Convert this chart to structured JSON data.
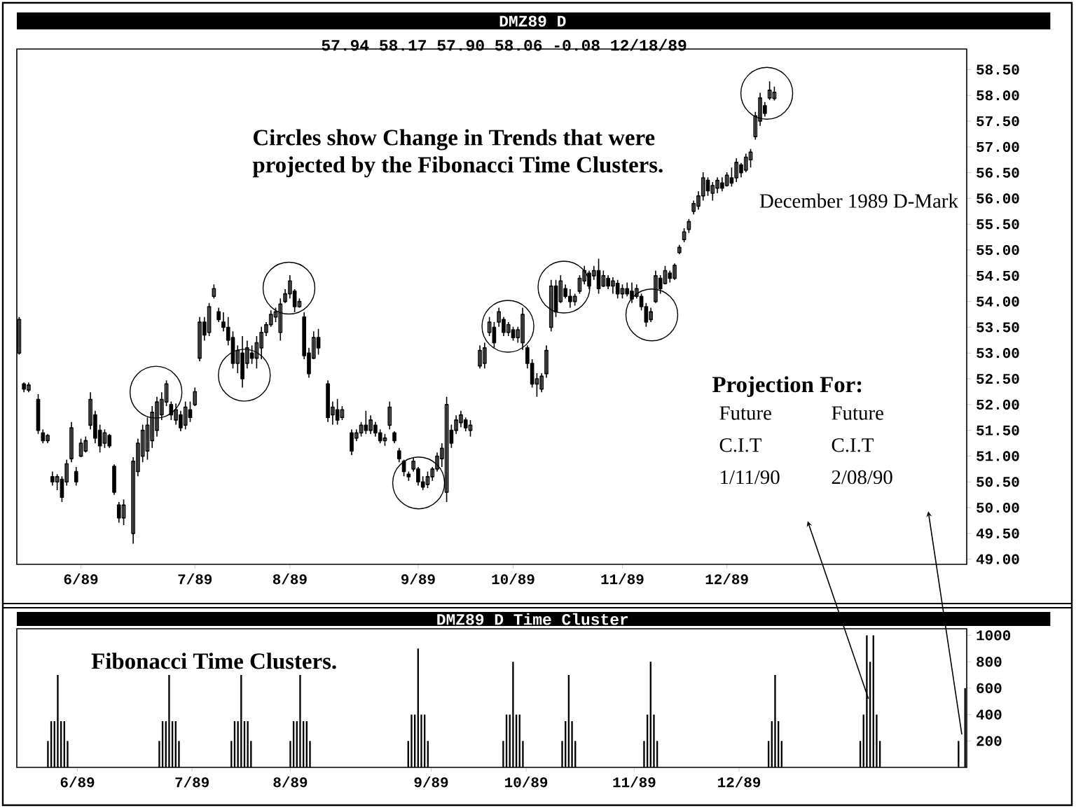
{
  "chart_data": [
    {
      "type": "candlestick",
      "title": "DMZ89 D",
      "subtitle": "57.94 58.17 57.90 58.06 -0.08 12/18/89",
      "color": "#000000",
      "categories": [
        null,
        null,
        null,
        null,
        null,
        null,
        null,
        null,
        null,
        null,
        null,
        null,
        null,
        "6/89",
        null,
        null,
        null,
        null,
        null,
        null,
        null,
        null,
        null,
        null,
        null,
        null,
        null,
        null,
        null,
        null,
        null,
        null,
        null,
        null,
        null,
        null,
        null,
        "7/89",
        null,
        null,
        null,
        null,
        null,
        null,
        null,
        null,
        null,
        null,
        null,
        null,
        null,
        null,
        null,
        null,
        null,
        null,
        null,
        "8/89",
        null,
        null,
        null,
        null,
        null,
        null,
        null,
        null,
        null,
        null,
        null,
        null,
        null,
        null,
        null,
        null,
        null,
        null,
        null,
        null,
        null,
        null,
        null,
        null,
        null,
        null,
        "9/89",
        null,
        null,
        null,
        null,
        null,
        null,
        null,
        null,
        null,
        null,
        null,
        null,
        null,
        null,
        null,
        null,
        null,
        null,
        null,
        "10/89",
        null,
        null,
        null,
        null,
        null,
        null,
        null,
        null,
        null,
        null,
        null,
        null,
        null,
        null,
        null,
        null,
        null,
        null,
        null,
        null,
        null,
        null,
        "11/89",
        null,
        null,
        null,
        null,
        null,
        null,
        null,
        null,
        null,
        null,
        null,
        null,
        null,
        null,
        null,
        null,
        null,
        null,
        null,
        null,
        null,
        "12/89",
        null,
        null,
        null,
        null,
        null,
        null,
        null,
        null,
        null,
        null,
        null,
        null,
        null,
        null,
        null,
        null,
        null,
        null,
        null,
        null,
        null,
        null,
        null,
        null,
        null,
        null,
        null,
        null,
        null,
        null,
        null,
        null,
        null,
        null,
        null,
        null,
        null,
        null,
        null,
        null,
        null,
        null,
        null,
        null,
        null,
        null,
        null,
        null,
        null,
        null
      ],
      "ohlc": [
        [
          53.0,
          53.7,
          52.97,
          53.65
        ],
        [
          52.4,
          52.43,
          52.24,
          52.3
        ],
        [
          52.28,
          52.43,
          52.24,
          52.38
        ],
        null,
        [
          52.1,
          52.2,
          51.43,
          51.5
        ],
        [
          51.45,
          51.52,
          51.25,
          51.3
        ],
        [
          51.3,
          51.43,
          51.25,
          51.4
        ],
        [
          50.6,
          50.7,
          50.43,
          50.5
        ],
        [
          50.5,
          50.65,
          50.34,
          50.6
        ],
        [
          50.55,
          50.61,
          50.11,
          50.2
        ],
        [
          50.5,
          50.93,
          50.43,
          50.85
        ],
        [
          50.95,
          51.66,
          50.88,
          51.55
        ],
        [
          50.7,
          50.79,
          50.43,
          50.5
        ],
        [
          51.0,
          51.34,
          50.98,
          51.25
        ],
        [
          51.1,
          51.38,
          51.07,
          51.3
        ],
        [
          51.6,
          52.24,
          51.52,
          52.1
        ],
        [
          51.8,
          51.88,
          51.25,
          51.35
        ],
        [
          51.5,
          51.61,
          51.07,
          51.2
        ],
        [
          51.25,
          51.52,
          51.16,
          51.45
        ],
        [
          51.4,
          51.43,
          51.16,
          51.2
        ],
        [
          50.8,
          50.84,
          50.25,
          50.3
        ],
        [
          50.05,
          50.11,
          49.71,
          49.8
        ],
        [
          49.8,
          50.16,
          49.66,
          50.05
        ],
        null,
        [
          49.5,
          50.98,
          49.3,
          50.9
        ],
        [
          50.7,
          51.34,
          50.61,
          51.25
        ],
        [
          51.0,
          51.61,
          50.88,
          51.5
        ],
        [
          51.1,
          51.75,
          50.93,
          51.6
        ],
        [
          51.3,
          51.97,
          51.16,
          51.85
        ],
        [
          51.5,
          52.15,
          51.38,
          52.05
        ],
        [
          51.8,
          52.24,
          51.7,
          52.1
        ],
        [
          52.05,
          52.47,
          51.97,
          52.4
        ],
        [
          52.0,
          52.06,
          51.7,
          51.8
        ],
        [
          51.7,
          52.02,
          51.61,
          51.9
        ],
        [
          51.8,
          51.88,
          51.48,
          51.55
        ],
        [
          51.6,
          52.06,
          51.52,
          51.95
        ],
        [
          51.9,
          52.06,
          51.66,
          51.75
        ],
        [
          52.0,
          52.33,
          51.97,
          52.25
        ],
        [
          52.9,
          53.7,
          52.84,
          53.6
        ],
        [
          53.6,
          53.7,
          53.24,
          53.35
        ],
        [
          53.4,
          53.97,
          53.33,
          53.9
        ],
        [
          54.1,
          54.33,
          54.06,
          54.25
        ],
        [
          53.8,
          53.88,
          53.6,
          53.65
        ],
        [
          53.6,
          53.79,
          53.42,
          53.5
        ],
        [
          53.5,
          53.7,
          53.15,
          53.25
        ],
        [
          53.3,
          53.42,
          52.7,
          52.8
        ],
        [
          52.8,
          53.15,
          52.61,
          53.05
        ],
        [
          53.0,
          53.33,
          52.33,
          52.5
        ],
        [
          52.8,
          53.24,
          52.7,
          53.1
        ],
        [
          53.0,
          53.15,
          52.79,
          52.9
        ],
        [
          52.9,
          53.33,
          52.7,
          53.2
        ],
        [
          53.1,
          53.51,
          52.88,
          53.4
        ],
        [
          53.4,
          53.6,
          53.33,
          53.55
        ],
        [
          53.55,
          53.83,
          53.51,
          53.75
        ],
        [
          53.7,
          53.88,
          53.6,
          53.8
        ],
        [
          53.4,
          54.06,
          53.24,
          53.95
        ],
        [
          54.0,
          54.24,
          53.97,
          54.15
        ],
        [
          54.15,
          54.51,
          54.06,
          54.4
        ],
        [
          54.2,
          54.24,
          53.79,
          53.9
        ],
        [
          53.9,
          54.06,
          53.88,
          54.0
        ],
        [
          53.7,
          53.79,
          52.88,
          52.95
        ],
        [
          53.0,
          53.1,
          52.52,
          52.6
        ],
        [
          52.9,
          53.42,
          52.88,
          53.3
        ],
        [
          53.3,
          53.47,
          52.97,
          53.1
        ],
        null,
        [
          52.4,
          52.47,
          51.66,
          51.75
        ],
        [
          51.8,
          52.06,
          51.61,
          51.95
        ],
        [
          51.9,
          52.11,
          51.61,
          51.7
        ],
        [
          51.75,
          51.97,
          51.7,
          51.9
        ],
        null,
        [
          51.45,
          51.52,
          51.02,
          51.1
        ],
        [
          51.35,
          51.52,
          51.29,
          51.45
        ],
        [
          51.45,
          51.66,
          51.38,
          51.6
        ],
        [
          51.6,
          51.88,
          51.43,
          51.5
        ],
        [
          51.5,
          51.79,
          51.43,
          51.7
        ],
        [
          51.6,
          51.66,
          51.38,
          51.45
        ],
        [
          51.45,
          51.52,
          51.25,
          51.3
        ],
        [
          51.3,
          51.43,
          51.2,
          51.35
        ],
        [
          51.6,
          52.06,
          51.52,
          51.95
        ],
        [
          51.45,
          51.48,
          51.25,
          51.3
        ],
        [
          51.1,
          51.16,
          50.88,
          50.95
        ],
        [
          50.9,
          50.93,
          50.61,
          50.7
        ],
        [
          50.65,
          50.7,
          50.52,
          50.6
        ],
        [
          50.75,
          50.98,
          50.7,
          50.9
        ],
        [
          50.75,
          50.79,
          50.43,
          50.5
        ],
        [
          50.5,
          50.61,
          50.34,
          50.4
        ],
        [
          50.45,
          50.7,
          50.38,
          50.6
        ],
        [
          50.6,
          50.79,
          50.52,
          50.75
        ],
        [
          50.75,
          51.07,
          50.7,
          51.0
        ],
        [
          50.95,
          51.25,
          50.79,
          51.15
        ],
        [
          50.3,
          52.15,
          50.11,
          52.0
        ],
        [
          51.5,
          51.61,
          51.16,
          51.25
        ],
        [
          51.5,
          51.79,
          51.43,
          51.7
        ],
        [
          51.65,
          51.88,
          51.56,
          51.8
        ],
        [
          51.7,
          51.75,
          51.48,
          51.55
        ],
        [
          51.5,
          51.7,
          51.38,
          51.6
        ],
        null,
        [
          52.75,
          53.15,
          52.7,
          53.05
        ],
        [
          52.8,
          53.2,
          52.7,
          53.1
        ],
        [
          53.4,
          53.7,
          53.33,
          53.6
        ],
        [
          53.5,
          53.6,
          53.1,
          53.2
        ],
        [
          53.6,
          53.88,
          53.51,
          53.8
        ],
        [
          53.65,
          53.7,
          53.33,
          53.4
        ],
        [
          53.4,
          53.6,
          53.33,
          53.55
        ],
        [
          53.45,
          53.51,
          53.24,
          53.3
        ],
        [
          53.3,
          53.51,
          53.2,
          53.45
        ],
        [
          53.2,
          53.88,
          53.06,
          53.75
        ],
        [
          53.1,
          53.15,
          52.7,
          52.8
        ],
        [
          52.8,
          52.88,
          52.33,
          52.4
        ],
        [
          52.4,
          52.61,
          52.15,
          52.5
        ],
        [
          52.3,
          52.61,
          52.24,
          52.55
        ],
        [
          52.6,
          53.15,
          52.52,
          53.05
        ],
        [
          53.5,
          54.42,
          53.42,
          54.3
        ],
        [
          54.3,
          54.42,
          53.7,
          53.8
        ],
        [
          54.0,
          54.51,
          53.97,
          54.4
        ],
        [
          54.25,
          54.33,
          54.06,
          54.1
        ],
        [
          54.1,
          54.24,
          53.88,
          54.0
        ],
        [
          54.0,
          54.15,
          53.92,
          54.1
        ],
        [
          54.2,
          54.51,
          54.15,
          54.45
        ],
        [
          54.4,
          54.69,
          54.33,
          54.6
        ],
        [
          54.55,
          54.6,
          54.24,
          54.3
        ],
        [
          54.5,
          54.69,
          54.42,
          54.6
        ],
        [
          54.6,
          54.83,
          54.15,
          54.25
        ],
        [
          54.3,
          54.6,
          54.28,
          54.5
        ],
        [
          54.45,
          54.51,
          54.24,
          54.3
        ],
        [
          54.3,
          54.47,
          54.15,
          54.4
        ],
        [
          54.35,
          54.42,
          54.06,
          54.15
        ],
        [
          54.15,
          54.33,
          54.06,
          54.25
        ],
        [
          54.25,
          54.37,
          54.1,
          54.15
        ],
        [
          54.2,
          54.37,
          53.97,
          54.05
        ],
        [
          54.1,
          54.33,
          54.06,
          54.25
        ],
        [
          54.1,
          54.15,
          53.83,
          53.9
        ],
        [
          53.9,
          53.97,
          53.51,
          53.6
        ],
        [
          53.65,
          53.88,
          53.6,
          53.8
        ],
        [
          54.0,
          54.6,
          53.97,
          54.5
        ],
        [
          54.45,
          54.51,
          54.15,
          54.25
        ],
        [
          54.35,
          54.69,
          54.33,
          54.6
        ],
        [
          54.55,
          54.6,
          54.37,
          54.45
        ],
        [
          54.45,
          54.74,
          54.42,
          54.7
        ],
        [
          54.95,
          55.1,
          54.92,
          55.05
        ],
        [
          55.2,
          55.42,
          55.15,
          55.35
        ],
        [
          55.4,
          55.6,
          55.33,
          55.55
        ],
        [
          55.75,
          55.96,
          55.69,
          55.9
        ],
        [
          55.85,
          56.14,
          55.78,
          56.05
        ],
        [
          56.05,
          56.51,
          55.96,
          56.4
        ],
        [
          56.35,
          56.41,
          56.05,
          56.15
        ],
        [
          56.1,
          56.32,
          55.96,
          56.25
        ],
        [
          56.2,
          56.41,
          56.1,
          56.35
        ],
        [
          56.3,
          56.41,
          56.14,
          56.2
        ],
        [
          56.25,
          56.51,
          56.23,
          56.45
        ],
        [
          56.4,
          56.6,
          56.23,
          56.3
        ],
        [
          56.4,
          56.78,
          56.32,
          56.7
        ],
        [
          56.65,
          56.69,
          56.41,
          56.5
        ],
        [
          56.55,
          56.87,
          56.51,
          56.8
        ],
        [
          56.75,
          56.96,
          56.6,
          56.9
        ],
        [
          57.2,
          57.68,
          57.14,
          57.6
        ],
        [
          57.5,
          58.05,
          57.41,
          57.95
        ],
        [
          57.8,
          57.87,
          57.59,
          57.65
        ],
        [
          57.95,
          58.27,
          57.91,
          58.1
        ],
        [
          57.94,
          58.17,
          57.9,
          58.06
        ],
        null,
        null,
        null,
        null,
        null,
        null,
        null,
        null,
        null,
        null,
        null,
        null,
        null,
        null,
        null,
        null,
        null,
        null,
        null,
        null,
        null,
        null,
        null,
        null,
        null,
        null,
        null,
        null,
        null,
        null,
        null,
        null,
        null,
        null,
        null,
        null,
        null,
        null,
        null,
        null
      ],
      "ylim": [
        48.9,
        58.9
      ],
      "yticks": [
        {
          "value": 49,
          "label": "49.00"
        },
        {
          "value": 49.5,
          "label": "49.50"
        },
        {
          "value": 50,
          "label": "50.00"
        },
        {
          "value": 50.5,
          "label": "50.50"
        },
        {
          "value": 51,
          "label": "51.00"
        },
        {
          "value": 51.5,
          "label": "51.50"
        },
        {
          "value": 52,
          "label": "52.00"
        },
        {
          "value": 52.5,
          "label": "52.50"
        },
        {
          "value": 53,
          "label": "53.00"
        },
        {
          "value": 53.5,
          "label": "53.50"
        },
        {
          "value": 54,
          "label": "54.00"
        },
        {
          "value": 54.5,
          "label": "54.50"
        },
        {
          "value": 55,
          "label": "55.00"
        },
        {
          "value": 55.5,
          "label": "55.50"
        },
        {
          "value": 56,
          "label": "56.00"
        },
        {
          "value": 56.5,
          "label": "56.50"
        },
        {
          "value": 57,
          "label": "57.00"
        },
        {
          "value": 57.5,
          "label": "57.50"
        },
        {
          "value": 58,
          "label": "58.00"
        },
        {
          "value": 58.5,
          "label": "58.50"
        }
      ],
      "annotations": [
        "Circles show Change in Trends that were projected by the Fibonacci Time Clusters.",
        "December 1989 D-Mark",
        "Projection For:",
        "Future C.I.T 1/11/90",
        "Future C.I.T 2/08/90"
      ]
    },
    {
      "type": "bar",
      "title": "DMZ89 D Time Cluster",
      "color": "#000000",
      "categories": [
        null,
        null,
        null,
        null,
        null,
        null,
        null,
        null,
        null,
        null,
        null,
        null,
        null,
        null,
        null,
        null,
        null,
        null,
        "6/89",
        null,
        null,
        null,
        null,
        null,
        null,
        null,
        null,
        null,
        null,
        null,
        null,
        null,
        null,
        null,
        null,
        null,
        null,
        null,
        null,
        null,
        null,
        null,
        null,
        null,
        null,
        null,
        null,
        null,
        null,
        null,
        null,
        null,
        null,
        "7/89",
        null,
        null,
        null,
        null,
        null,
        null,
        null,
        null,
        null,
        null,
        null,
        null,
        null,
        null,
        null,
        null,
        null,
        null,
        null,
        null,
        null,
        null,
        null,
        null,
        null,
        null,
        null,
        null,
        null,
        "8/89",
        null,
        null,
        null,
        null,
        null,
        null,
        null,
        null,
        null,
        null,
        null,
        null,
        null,
        null,
        null,
        null,
        null,
        null,
        null,
        null,
        null,
        null,
        null,
        null,
        null,
        null,
        null,
        null,
        null,
        null,
        null,
        null,
        null,
        null,
        null,
        null,
        null,
        null,
        null,
        null,
        null,
        null,
        "9/89",
        null,
        null,
        null,
        null,
        null,
        null,
        null,
        null,
        null,
        null,
        null,
        null,
        null,
        null,
        null,
        null,
        null,
        null,
        null,
        null,
        null,
        null,
        null,
        null,
        null,
        null,
        null,
        null,
        "10/89",
        null,
        null,
        null,
        null,
        null,
        null,
        null,
        null,
        null,
        null,
        null,
        null,
        null,
        null,
        null,
        null,
        null,
        null,
        null,
        null,
        null,
        null,
        null,
        null,
        null,
        null,
        null,
        null,
        null,
        null,
        null,
        null,
        "11/89",
        null,
        null,
        null,
        null,
        null,
        null,
        null,
        null,
        null,
        null,
        null,
        null,
        null,
        null,
        null,
        null,
        null,
        null,
        null,
        null,
        null,
        null,
        null,
        null,
        null,
        null,
        null,
        null,
        null,
        null,
        null,
        "12/89",
        null,
        null,
        null,
        null,
        null,
        null,
        null,
        null,
        null,
        null,
        null,
        null,
        null,
        null,
        null,
        null,
        null,
        null,
        null,
        null,
        null,
        null,
        null,
        null,
        null,
        null,
        null,
        null,
        null,
        null,
        null,
        null,
        null,
        null,
        null,
        null,
        null,
        null,
        null,
        null,
        null,
        null,
        null,
        null,
        null,
        null,
        null,
        null,
        null,
        null,
        null,
        null,
        null,
        null,
        null,
        null,
        null,
        null,
        null,
        null,
        null,
        null,
        null,
        null,
        null,
        null,
        null,
        null,
        null
      ],
      "values": [
        null,
        null,
        null,
        null,
        null,
        null,
        null,
        null,
        null,
        200,
        350,
        350,
        700,
        350,
        350,
        200,
        null,
        null,
        null,
        null,
        null,
        null,
        null,
        null,
        null,
        null,
        null,
        null,
        null,
        null,
        null,
        null,
        null,
        null,
        null,
        null,
        null,
        null,
        null,
        null,
        null,
        null,
        null,
        200,
        350,
        350,
        700,
        350,
        350,
        200,
        null,
        null,
        null,
        null,
        null,
        null,
        null,
        null,
        null,
        null,
        null,
        null,
        null,
        null,
        null,
        200,
        350,
        350,
        700,
        350,
        350,
        200,
        null,
        null,
        null,
        null,
        null,
        null,
        null,
        null,
        null,
        null,
        null,
        200,
        350,
        350,
        700,
        350,
        350,
        200,
        null,
        null,
        null,
        null,
        null,
        null,
        null,
        null,
        null,
        null,
        null,
        null,
        null,
        null,
        null,
        null,
        null,
        null,
        null,
        null,
        null,
        null,
        null,
        null,
        null,
        null,
        null,
        null,
        null,
        200,
        400,
        400,
        900,
        400,
        400,
        200,
        null,
        null,
        null,
        null,
        null,
        null,
        null,
        null,
        null,
        null,
        null,
        null,
        null,
        null,
        null,
        null,
        null,
        null,
        null,
        null,
        null,
        null,
        200,
        400,
        400,
        800,
        400,
        400,
        200,
        null,
        null,
        null,
        null,
        null,
        null,
        null,
        null,
        null,
        null,
        null,
        200,
        350,
        700,
        350,
        200,
        null,
        null,
        null,
        null,
        null,
        null,
        null,
        null,
        null,
        null,
        null,
        null,
        null,
        null,
        null,
        null,
        null,
        null,
        null,
        null,
        200,
        400,
        800,
        400,
        200,
        null,
        null,
        null,
        null,
        null,
        null,
        null,
        null,
        null,
        null,
        null,
        null,
        null,
        null,
        null,
        null,
        null,
        null,
        null,
        null,
        null,
        null,
        null,
        null,
        null,
        null,
        null,
        null,
        null,
        null,
        null,
        null,
        null,
        200,
        350,
        700,
        350,
        200,
        null,
        null,
        null,
        null,
        null,
        null,
        null,
        null,
        null,
        null,
        null,
        null,
        null,
        null,
        null,
        null,
        null,
        null,
        null,
        null,
        null,
        null,
        null,
        200,
        400,
        1000,
        800,
        1000,
        400,
        200,
        null,
        null,
        null,
        null,
        null,
        null,
        null,
        null,
        null,
        null,
        null,
        null,
        null,
        null,
        null,
        null,
        null,
        null,
        null,
        null,
        null,
        null,
        null,
        200,
        null,
        600
      ],
      "ylim": [
        0,
        1050
      ],
      "yticks": [
        200,
        400,
        600,
        800,
        1000
      ],
      "annotations": [
        "Fibonacci Time Clusters."
      ]
    }
  ]
}
